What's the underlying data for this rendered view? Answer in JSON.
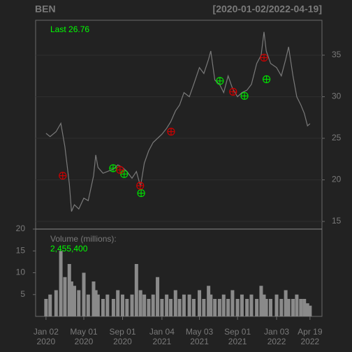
{
  "chart_data": [
    {
      "type": "line",
      "title": "BEN",
      "subtitle": "[2020-01-02/2022-04-19]",
      "annotation": "Last 26.76",
      "color": "#7a7a7a",
      "annotation_color": "#00ff00",
      "x": [
        "2020-01-02",
        "2020-01-15",
        "2020-02-03",
        "2020-02-18",
        "2020-03-02",
        "2020-03-16",
        "2020-03-23",
        "2020-04-01",
        "2020-04-15",
        "2020-05-01",
        "2020-05-15",
        "2020-06-01",
        "2020-06-08",
        "2020-06-15",
        "2020-07-01",
        "2020-07-15",
        "2020-08-03",
        "2020-08-17",
        "2020-09-01",
        "2020-09-15",
        "2020-10-01",
        "2020-10-15",
        "2020-10-28",
        "2020-11-09",
        "2020-11-23",
        "2020-12-07",
        "2020-12-21",
        "2021-01-04",
        "2021-01-19",
        "2021-02-01",
        "2021-02-16",
        "2021-03-01",
        "2021-03-15",
        "2021-04-01",
        "2021-04-15",
        "2021-05-03",
        "2021-05-17",
        "2021-06-01",
        "2021-06-08",
        "2021-06-21",
        "2021-07-06",
        "2021-07-19",
        "2021-08-02",
        "2021-08-16",
        "2021-09-01",
        "2021-09-15",
        "2021-10-01",
        "2021-10-15",
        "2021-11-01",
        "2021-11-15",
        "2021-11-24",
        "2021-12-01",
        "2021-12-15",
        "2022-01-03",
        "2022-01-18",
        "2022-02-01",
        "2022-02-10",
        "2022-02-24",
        "2022-03-08",
        "2022-03-21",
        "2022-04-01",
        "2022-04-11",
        "2022-04-19"
      ],
      "values": [
        25.6,
        25.2,
        25.8,
        26.8,
        24.0,
        19.5,
        16.2,
        17.0,
        16.5,
        17.8,
        17.5,
        20.5,
        23.0,
        21.5,
        20.8,
        21.0,
        21.3,
        21.8,
        21.5,
        21.0,
        20.2,
        21.0,
        19.2,
        22.0,
        23.5,
        24.5,
        25.0,
        25.5,
        26.2,
        27.0,
        28.3,
        29.0,
        30.5,
        30.0,
        31.5,
        33.5,
        32.8,
        34.5,
        35.5,
        32.0,
        31.5,
        30.5,
        32.5,
        31.0,
        30.0,
        30.5,
        30.8,
        31.5,
        34.0,
        35.0,
        37.8,
        35.5,
        34.0,
        33.5,
        32.5,
        34.5,
        36.0,
        32.5,
        30.0,
        29.0,
        28.0,
        26.5,
        26.76
      ],
      "signals": [
        {
          "color": "#00dd00",
          "x": [
            "2020-08-02",
            "2020-09-06",
            "2020-10-30",
            "2021-07-07",
            "2021-09-23",
            "2021-12-02"
          ],
          "values": [
            21.4,
            20.7,
            18.4,
            31.9,
            30.1,
            32.1
          ]
        },
        {
          "color": "#cc0000",
          "x": [
            "2020-02-24",
            "2020-08-24",
            "2020-10-27",
            "2021-02-02",
            "2021-08-18",
            "2021-11-24"
          ],
          "values": [
            20.5,
            21.2,
            19.3,
            25.8,
            30.6,
            34.7
          ]
        }
      ],
      "xlim": [
        "2019-11-30",
        "2022-05-27"
      ],
      "ylim": [
        14.08,
        39.2
      ],
      "yticks": [
        15,
        20,
        25,
        30,
        35
      ],
      "grid": true
    },
    {
      "type": "bar",
      "title": "Volume (millions):",
      "color": "#8a8a8a",
      "label_color": "#00ff00",
      "x": [
        "2020-01-02",
        "2020-01-15",
        "2020-02-03",
        "2020-02-18",
        "2020-03-02",
        "2020-03-16",
        "2020-03-23",
        "2020-04-01",
        "2020-04-15",
        "2020-05-01",
        "2020-05-15",
        "2020-06-01",
        "2020-06-08",
        "2020-06-15",
        "2020-07-01",
        "2020-07-15",
        "2020-08-03",
        "2020-08-17",
        "2020-09-01",
        "2020-09-15",
        "2020-10-01",
        "2020-10-15",
        "2020-10-28",
        "2020-11-09",
        "2020-11-23",
        "2020-12-07",
        "2020-12-21",
        "2021-01-04",
        "2021-01-19",
        "2021-02-01",
        "2021-02-16",
        "2021-03-01",
        "2021-03-15",
        "2021-04-01",
        "2021-04-15",
        "2021-05-03",
        "2021-05-17",
        "2021-06-01",
        "2021-06-08",
        "2021-06-21",
        "2021-07-06",
        "2021-07-19",
        "2021-08-02",
        "2021-08-16",
        "2021-09-01",
        "2021-09-15",
        "2021-10-01",
        "2021-10-15",
        "2021-11-01",
        "2021-11-15",
        "2021-11-24",
        "2021-12-01",
        "2021-12-15",
        "2022-01-03",
        "2022-01-18",
        "2022-02-01",
        "2022-02-10",
        "2022-02-24",
        "2022-03-08",
        "2022-03-21",
        "2022-04-01",
        "2022-04-11",
        "2022-04-19"
      ],
      "values": [
        4,
        5,
        6,
        15,
        9,
        12,
        8,
        7,
        6,
        10,
        5,
        8,
        6,
        5,
        4,
        5,
        4,
        6,
        5,
        4,
        5,
        12,
        6,
        5,
        4,
        5,
        9,
        4,
        5,
        4,
        6,
        4,
        5,
        5,
        4,
        6,
        4,
        7,
        5,
        4,
        4,
        5,
        4,
        6,
        4,
        5,
        4,
        5,
        4,
        7,
        5,
        4,
        4,
        5,
        4,
        6,
        4,
        4,
        5,
        4,
        4,
        3,
        2.4554
      ],
      "value_labels": [
        null,
        null,
        null,
        null,
        null,
        null,
        null,
        null,
        null,
        null,
        null,
        null,
        null,
        null,
        null,
        null,
        null,
        null,
        null,
        null,
        null,
        null,
        null,
        null,
        null,
        null,
        null,
        null,
        null,
        null,
        null,
        null,
        null,
        null,
        null,
        null,
        null,
        null,
        null,
        null,
        null,
        null,
        null,
        null,
        null,
        null,
        null,
        null,
        null,
        null,
        null,
        null,
        null,
        null,
        null,
        null,
        null,
        null,
        null,
        null,
        null,
        null,
        "2,455,400"
      ],
      "xlim": [
        "2019-11-30",
        "2022-05-27"
      ],
      "ylim": [
        0,
        20
      ],
      "yticks": [
        5,
        10,
        15,
        20
      ],
      "xticks": [
        {
          "value": "2020-01-02",
          "label": "Jan 02\n2020"
        },
        {
          "value": "2020-05-01",
          "label": "May 01\n2020"
        },
        {
          "value": "2020-09-01",
          "label": "Sep 01\n2020"
        },
        {
          "value": "2021-01-04",
          "label": "Jan 04\n2021"
        },
        {
          "value": "2021-05-03",
          "label": "May 03\n2021"
        },
        {
          "value": "2021-09-01",
          "label": "Sep 01\n2021"
        },
        {
          "value": "2022-01-03",
          "label": "Jan 03\n2022"
        },
        {
          "value": "2022-04-19",
          "label": "Apr 19\n2022"
        }
      ]
    }
  ]
}
